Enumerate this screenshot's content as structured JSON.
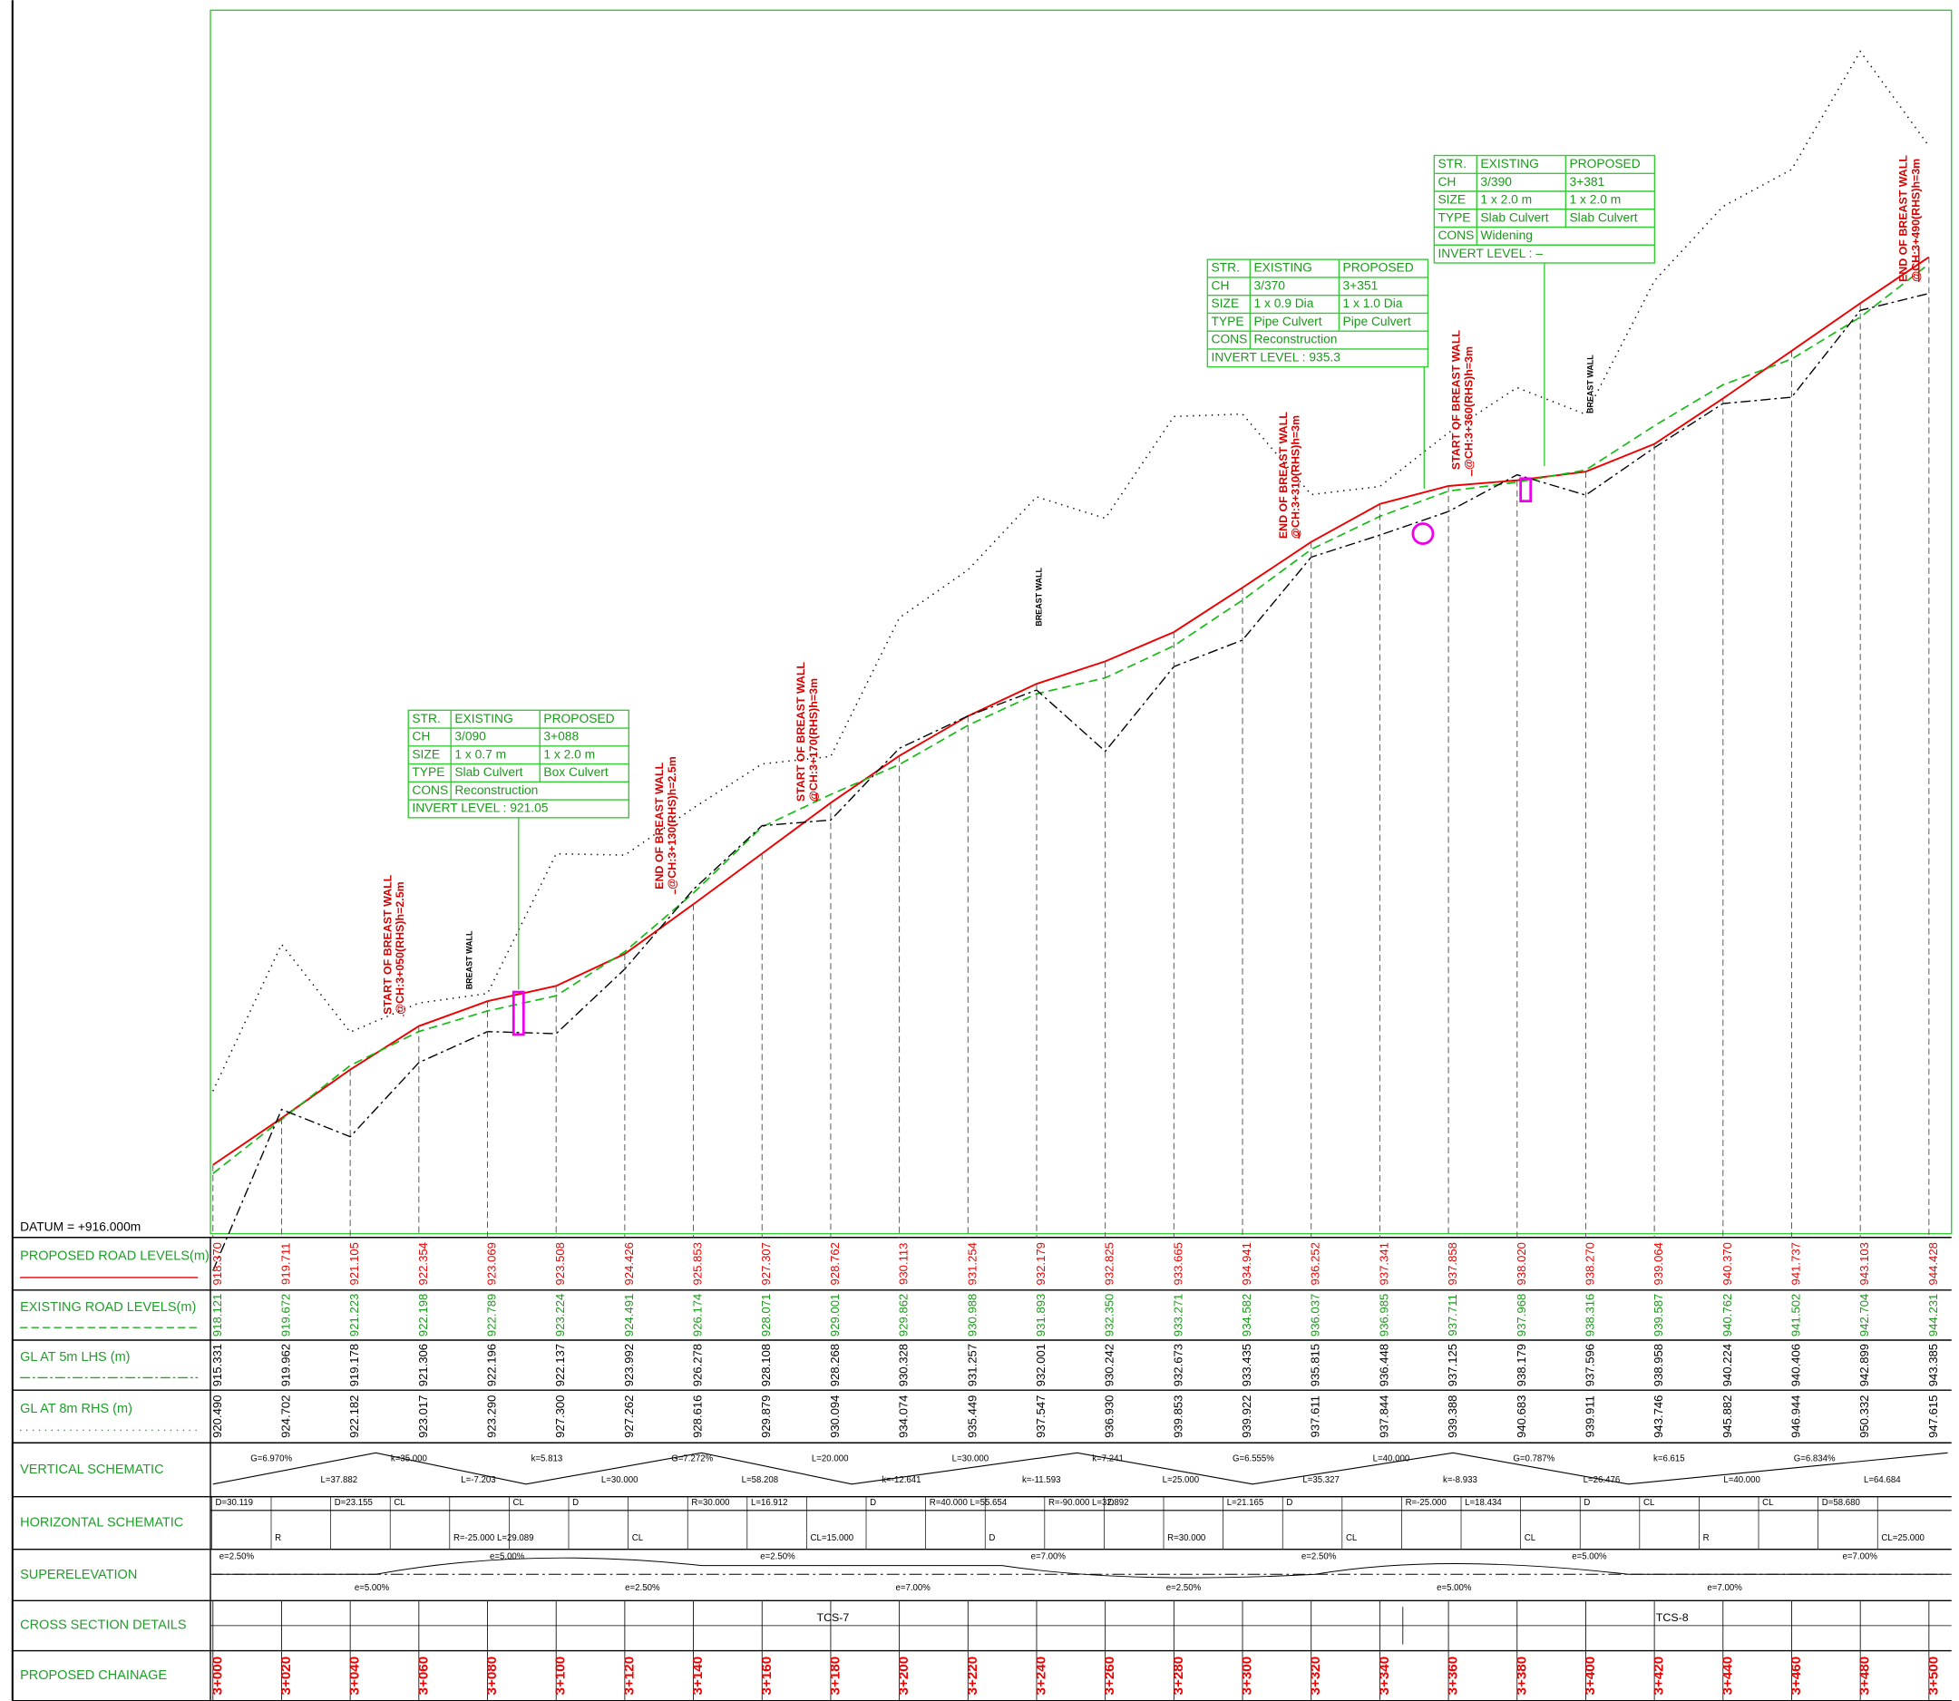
{
  "datum": "DATUM = +916.000m",
  "row_labels": [
    "PROPOSED ROAD LEVELS(m)",
    "EXISTING ROAD LEVELS(m)",
    "GL AT 5m LHS (m)",
    "GL AT 8m RHS (m)",
    "VERTICAL SCHEMATIC",
    "HORIZONTAL SCHEMATIC",
    "SUPERELEVATION",
    "CROSS SECTION DETAILS",
    "PROPOSED CHAINAGE"
  ],
  "chainage": [
    "3+000",
    "3+020",
    "3+040",
    "3+060",
    "3+080",
    "3+100",
    "3+120",
    "3+140",
    "3+160",
    "3+180",
    "3+200",
    "3+220",
    "3+240",
    "3+260",
    "3+280",
    "3+300",
    "3+320",
    "3+340",
    "3+360",
    "3+380",
    "3+400",
    "3+420",
    "3+440",
    "3+460",
    "3+480",
    "3+500"
  ],
  "proposed": [
    "918.370",
    "919.711",
    "921.105",
    "922.354",
    "923.069",
    "923.508",
    "924.426",
    "925.853",
    "927.307",
    "928.762",
    "930.113",
    "931.254",
    "932.179",
    "932.825",
    "933.665",
    "934.941",
    "936.252",
    "937.341",
    "937.858",
    "938.020",
    "938.270",
    "939.064",
    "940.370",
    "941.737",
    "943.103",
    "944.428"
  ],
  "existing": [
    "918.121",
    "919.672",
    "921.223",
    "922.198",
    "922.789",
    "923.224",
    "924.491",
    "926.174",
    "928.071",
    "929.001",
    "929.862",
    "930.988",
    "931.893",
    "932.350",
    "933.271",
    "934.582",
    "936.037",
    "936.985",
    "937.711",
    "937.968",
    "938.316",
    "939.587",
    "940.762",
    "941.502",
    "942.704",
    "944.231"
  ],
  "gl_lhs": [
    "915.331",
    "919.962",
    "919.178",
    "921.306",
    "922.196",
    "922.137",
    "923.992",
    "926.278",
    "928.108",
    "928.268",
    "930.328",
    "931.257",
    "932.001",
    "930.242",
    "932.673",
    "933.435",
    "935.815",
    "936.448",
    "937.125",
    "938.179",
    "937.596",
    "938.958",
    "940.224",
    "940.406",
    "942.899",
    "943.385"
  ],
  "gl_rhs": [
    "920.490",
    "924.702",
    "922.182",
    "923.017",
    "923.290",
    "927.300",
    "927.262",
    "928.616",
    "929.879",
    "930.094",
    "934.074",
    "935.449",
    "937.547",
    "936.930",
    "939.853",
    "939.922",
    "937.611",
    "937.844",
    "939.388",
    "940.683",
    "939.911",
    "943.746",
    "945.882",
    "946.944",
    "950.332",
    "947.615"
  ],
  "vertical_schematic": [
    "G=6.970%",
    "L=37.882",
    "k=35.000",
    "L=-7.203",
    "k=5.813",
    "L=30.000",
    "G=7.272%",
    "L=58.208",
    "L=20.000",
    "k=-12.641",
    "L=30.000",
    "k=-11.593",
    "k=7.241",
    "L=25.000",
    "G=6.555%",
    "L=35.327",
    "L=40.000",
    "k=-8.933",
    "G=0.787%",
    "L=26.476",
    "k=6.615",
    "L=40.000",
    "G=6.834%",
    "L=64.684"
  ],
  "horizontal_schematic": [
    "D=30.119",
    "R",
    "D=23.155",
    "CL",
    "R=-25.000 L=29.089",
    "CL",
    "D",
    "CL",
    "R=30.000",
    "L=16.912",
    "CL=15.000",
    "D",
    "R=40.000 L=55.654",
    "D",
    "R=-90.000 L=32.892",
    "D",
    "R=30.000",
    "L=21.165",
    "D",
    "CL",
    "R=-25.000",
    "L=18.434",
    "CL",
    "D",
    "CL",
    "R",
    "CL",
    "D=58.680",
    "CL=25.000"
  ],
  "superelevation": [
    "e=2.50%",
    "e=5.00%",
    "e=5.00%",
    "e=2.50%",
    "e=2.50%",
    "e=7.00%",
    "e=7.00%",
    "e=2.50%",
    "e=2.50%",
    "e=5.00%",
    "e=5.00%",
    "e=7.00%",
    "e=7.00%"
  ],
  "cross_sections": [
    "TCS-7",
    "TCS-8"
  ],
  "structures": [
    {
      "rows": [
        [
          "STR.",
          "EXISTING",
          "PROPOSED"
        ],
        [
          "CH",
          "3/090",
          "3+088"
        ],
        [
          "SIZE",
          "1 x 0.7 m",
          "1 x 2.0 m"
        ],
        [
          "TYPE",
          "Slab Culvert",
          "Box Culvert"
        ],
        [
          "CONS",
          "Reconstruction"
        ],
        [
          "INVERT LEVEL : 921.05"
        ]
      ]
    },
    {
      "rows": [
        [
          "STR.",
          "EXISTING",
          "PROPOSED"
        ],
        [
          "CH",
          "3/370",
          "3+351"
        ],
        [
          "SIZE",
          "1 x 0.9 Dia",
          "1 x 1.0 Dia"
        ],
        [
          "TYPE",
          "Pipe Culvert",
          "Pipe Culvert"
        ],
        [
          "CONS",
          "Reconstruction"
        ],
        [
          "INVERT LEVEL : 935.3"
        ]
      ]
    },
    {
      "rows": [
        [
          "STR.",
          "EXISTING",
          "PROPOSED"
        ],
        [
          "CH",
          "3/390",
          "3+381"
        ],
        [
          "SIZE",
          "1 x 2.0 m",
          "1 x 2.0 m"
        ],
        [
          "TYPE",
          "Slab Culvert",
          "Slab Culvert"
        ],
        [
          "CONS",
          "Widening"
        ],
        [
          "INVERT LEVEL : –"
        ]
      ]
    }
  ],
  "breast_walls": [
    [
      "START OF BREAST WALL",
      "@CH:3+050(RHS)h=2.5m"
    ],
    [
      "END OF BREAST WALL",
      "@CH:3+130(RHS)h=2.5m"
    ],
    [
      "START OF BREAST WALL",
      "@CH:3+170(RHS)h=3m"
    ],
    [
      "END OF BREAST WALL",
      "@CH:3+310(RHS)h=3m"
    ],
    [
      "START OF BREAST WALL",
      "@CH:3+360(RHS)h=3m"
    ],
    [
      "END OF BREAST WALL",
      "@CH:3+490(RHS)h=3m"
    ]
  ],
  "breast_wall_label": "BREAST WALL"
}
